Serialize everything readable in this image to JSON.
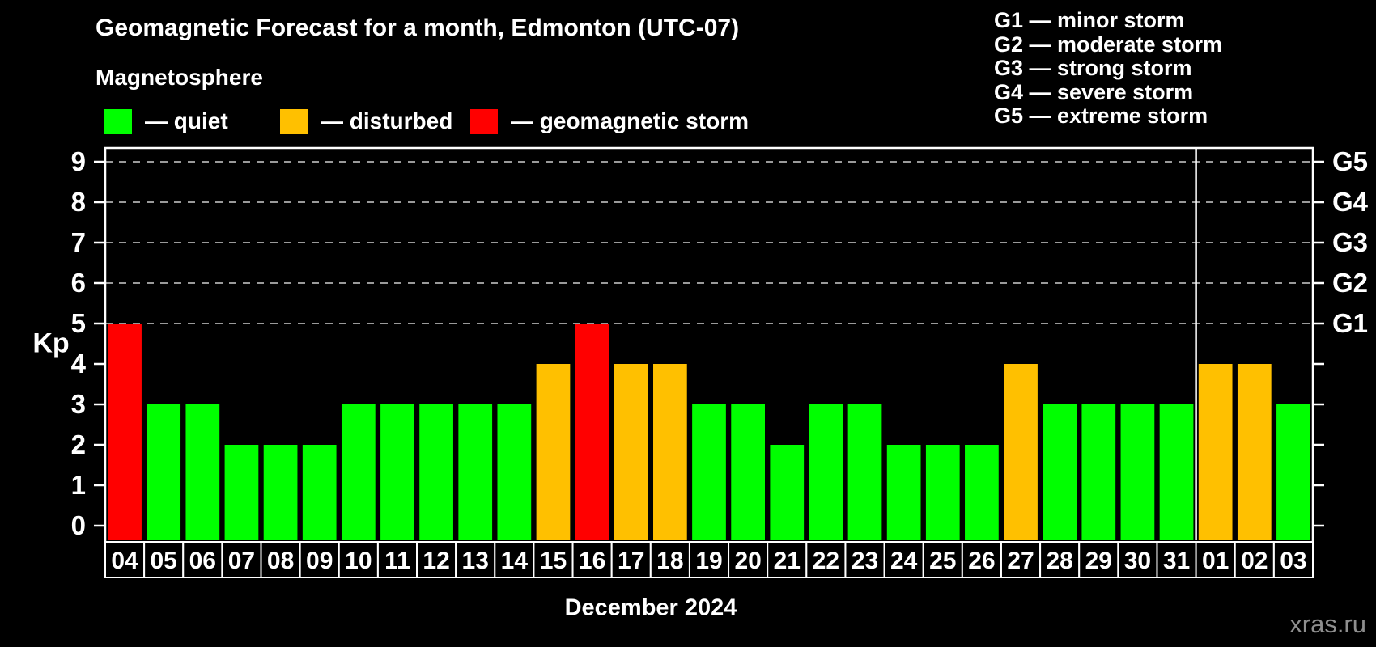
{
  "title": "Geomagnetic Forecast for a month, Edmonton (UTC-07)",
  "subtitle": "Magnetosphere",
  "legend": {
    "items": [
      {
        "key": "quiet",
        "label": "— quiet",
        "color": "#00ff00"
      },
      {
        "key": "disturbed",
        "label": "— disturbed",
        "color": "#ffc000"
      },
      {
        "key": "storm",
        "label": "— geomagnetic storm",
        "color": "#ff0000"
      }
    ]
  },
  "storm_scale_legend": {
    "items": [
      "G1 — minor storm",
      "G2 — moderate storm",
      "G3 — strong storm",
      "G4 — severe storm",
      "G5 — extreme storm"
    ]
  },
  "watermark": "xras.ru",
  "chart_data": {
    "type": "bar",
    "title": "Geomagnetic Forecast for a month, Edmonton (UTC-07)",
    "xlabel": "December 2024",
    "ylabel": "Kp",
    "ylim": [
      0,
      9.35
    ],
    "yticks": [
      0,
      1,
      2,
      3,
      4,
      5,
      6,
      7,
      8,
      9
    ],
    "gridlines_at": [
      5,
      6,
      7,
      8,
      9
    ],
    "grid": "dashed",
    "legend_position": "top",
    "right_axis_labels": [
      {
        "label": "G1",
        "kp": 5
      },
      {
        "label": "G2",
        "kp": 6
      },
      {
        "label": "G3",
        "kp": 7
      },
      {
        "label": "G4",
        "kp": 8
      },
      {
        "label": "G5",
        "kp": 9
      }
    ],
    "categories": [
      "04",
      "05",
      "06",
      "07",
      "08",
      "09",
      "10",
      "11",
      "12",
      "13",
      "14",
      "15",
      "16",
      "17",
      "18",
      "19",
      "20",
      "21",
      "22",
      "23",
      "24",
      "25",
      "26",
      "27",
      "28",
      "29",
      "30",
      "31",
      "01",
      "02",
      "03"
    ],
    "values": [
      5,
      3,
      3,
      2,
      2,
      2,
      3,
      3,
      3,
      3,
      3,
      4,
      5,
      4,
      4,
      3,
      3,
      2,
      3,
      3,
      2,
      2,
      2,
      4,
      3,
      3,
      3,
      3,
      4,
      4,
      3
    ],
    "statuses": [
      "storm",
      "quiet",
      "quiet",
      "quiet",
      "quiet",
      "quiet",
      "quiet",
      "quiet",
      "quiet",
      "quiet",
      "quiet",
      "disturbed",
      "storm",
      "disturbed",
      "disturbed",
      "quiet",
      "quiet",
      "quiet",
      "quiet",
      "quiet",
      "quiet",
      "quiet",
      "quiet",
      "disturbed",
      "quiet",
      "quiet",
      "quiet",
      "quiet",
      "disturbed",
      "disturbed",
      "quiet"
    ],
    "colors": {
      "quiet": "#00ff00",
      "disturbed": "#ffc000",
      "storm": "#ff0000"
    },
    "month_separator_after_index": 27
  }
}
